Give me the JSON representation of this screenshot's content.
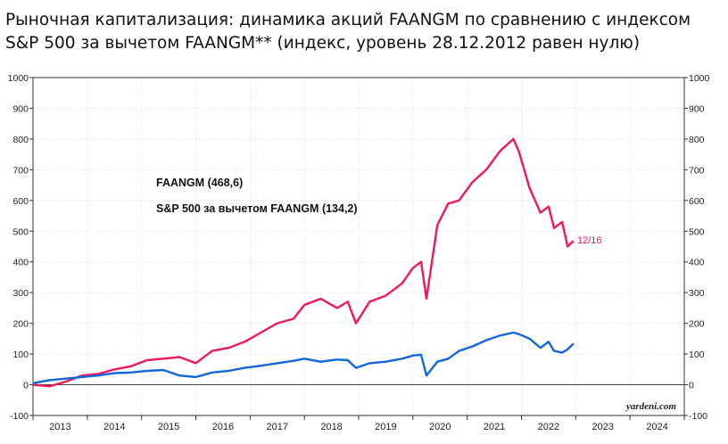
{
  "title_line1": "Рыночная капитализация: динамика акций FAANGM по сравнению с индексом",
  "title_line2": "S&P 500 за вычетом FAANGM** (индекс, уровень 28.12.2012 равен нулю)",
  "source": "yardeni.com",
  "end_label": "12/16",
  "colors": {
    "faangm": "#f0175e",
    "sp": "#1166dd"
  },
  "chart_data": {
    "type": "line",
    "title": "Рыночная капитализация: динамика акций FAANGM по сравнению с индексом S&P 500 за вычетом FAANGM** (индекс, уровень 28.12.2012 равен нулю)",
    "ylim": [
      -100,
      1000
    ],
    "yticks": [
      -100,
      0,
      100,
      200,
      300,
      400,
      500,
      600,
      700,
      800,
      900,
      1000
    ],
    "xlim": [
      2013,
      2025
    ],
    "xticks": [
      "2013",
      "2014",
      "2015",
      "2016",
      "2017",
      "2018",
      "2019",
      "2020",
      "2021",
      "2022",
      "2023",
      "2024"
    ],
    "grid": true,
    "series": [
      {
        "name": "FAANGM (468,6)",
        "x": [
          2013.0,
          2013.3,
          2013.6,
          2013.9,
          2014.2,
          2014.5,
          2014.8,
          2015.1,
          2015.4,
          2015.7,
          2016.0,
          2016.3,
          2016.6,
          2016.9,
          2017.2,
          2017.5,
          2017.8,
          2018.0,
          2018.3,
          2018.6,
          2018.8,
          2018.95,
          2019.2,
          2019.5,
          2019.8,
          2020.0,
          2020.15,
          2020.25,
          2020.45,
          2020.65,
          2020.85,
          2021.1,
          2021.35,
          2021.6,
          2021.85,
          2021.95,
          2022.15,
          2022.35,
          2022.5,
          2022.6,
          2022.75,
          2022.85,
          2022.96
        ],
        "y": [
          0,
          -5,
          10,
          30,
          35,
          50,
          60,
          80,
          85,
          90,
          70,
          110,
          120,
          140,
          170,
          200,
          215,
          260,
          280,
          250,
          270,
          200,
          270,
          290,
          330,
          380,
          400,
          280,
          520,
          590,
          600,
          660,
          700,
          760,
          800,
          760,
          640,
          560,
          580,
          510,
          530,
          450,
          468.6
        ]
      },
      {
        "name": "S&P 500 за вычетом FAANGM (134,2)",
        "x": [
          2013.0,
          2013.3,
          2013.6,
          2013.9,
          2014.2,
          2014.5,
          2014.8,
          2015.1,
          2015.4,
          2015.7,
          2016.0,
          2016.3,
          2016.6,
          2016.9,
          2017.2,
          2017.5,
          2017.8,
          2018.0,
          2018.3,
          2018.6,
          2018.8,
          2018.95,
          2019.2,
          2019.5,
          2019.8,
          2020.0,
          2020.15,
          2020.25,
          2020.45,
          2020.65,
          2020.85,
          2021.1,
          2021.35,
          2021.6,
          2021.85,
          2021.95,
          2022.15,
          2022.35,
          2022.5,
          2022.6,
          2022.75,
          2022.85,
          2022.96
        ],
        "y": [
          5,
          15,
          20,
          25,
          30,
          38,
          40,
          45,
          48,
          30,
          25,
          40,
          45,
          55,
          62,
          70,
          78,
          85,
          75,
          82,
          80,
          55,
          70,
          75,
          85,
          95,
          98,
          30,
          75,
          85,
          110,
          125,
          145,
          160,
          170,
          165,
          150,
          120,
          140,
          110,
          105,
          115,
          134.2
        ]
      }
    ]
  }
}
